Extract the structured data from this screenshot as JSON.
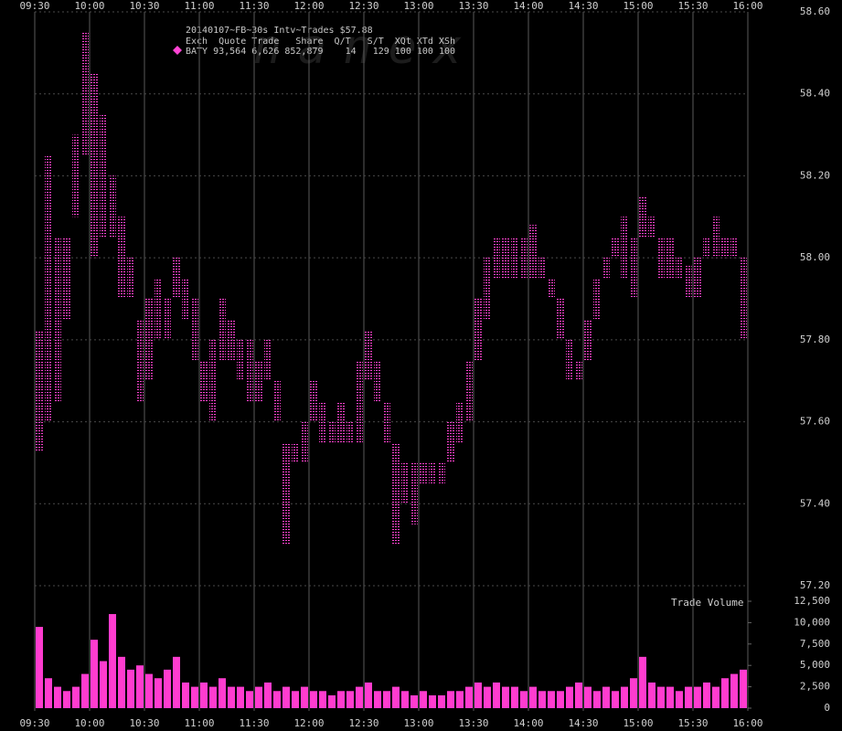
{
  "chart_data": {
    "type": "range",
    "header_lines": [
      "20140107~FB~30s Intv~Trades $57.88",
      "Exch  Quote Trade   Share  Q/T   S/T  XQt XTd XSh",
      "BATY 93,564 6,626 852,879    14   129 100 100 100"
    ],
    "watermark": "nanex",
    "volume_label": "Trade Volume",
    "xticks": [
      "09:30",
      "10:00",
      "10:30",
      "11:00",
      "11:30",
      "12:00",
      "12:30",
      "13:00",
      "13:30",
      "14:00",
      "14:30",
      "15:00",
      "15:30",
      "16:00"
    ],
    "ylim": [
      57.2,
      58.6
    ],
    "yticks": [
      {
        "value": 57.2,
        "label": "57.20"
      },
      {
        "value": 57.4,
        "label": "57.40"
      },
      {
        "value": 57.6,
        "label": "57.60"
      },
      {
        "value": 57.8,
        "label": "57.80"
      },
      {
        "value": 58.0,
        "label": "58.00"
      },
      {
        "value": 58.2,
        "label": "58.20"
      },
      {
        "value": 58.4,
        "label": "58.40"
      },
      {
        "value": 58.6,
        "label": "58.60"
      }
    ],
    "y2lim": [
      0,
      12500
    ],
    "y2ticks": [
      0,
      {
        "value": 2500,
        "label": "2,500"
      },
      {
        "value": 5000,
        "label": "5,000"
      },
      {
        "value": 7500,
        "label": "7,500"
      },
      {
        "value": 10000,
        "label": "10,000"
      },
      {
        "value": 12500,
        "label": "12,500"
      }
    ],
    "grid": true,
    "series": [
      {
        "color": "#ff44d4",
        "high": [
          57.82,
          58.25,
          58.05,
          58.05,
          58.3,
          58.55,
          58.45,
          58.35,
          58.2,
          58.1,
          58.0,
          57.85,
          57.9,
          57.95,
          57.9,
          58.0,
          57.95,
          57.9,
          57.75,
          57.8,
          57.9,
          57.85,
          57.8,
          57.8,
          57.75,
          57.8,
          57.7,
          57.55,
          57.55,
          57.6,
          57.7,
          57.65,
          57.6,
          57.65,
          57.6,
          57.75,
          57.82,
          57.75,
          57.65,
          57.55,
          57.5,
          57.5,
          57.5,
          57.5,
          57.5,
          57.6,
          57.65,
          57.75,
          57.9,
          58.0,
          58.05,
          58.05,
          58.05,
          58.05,
          58.08,
          58.0,
          57.95,
          57.9,
          57.8,
          57.75,
          57.85,
          57.95,
          58.0,
          58.05,
          58.1,
          58.05,
          58.15,
          58.1,
          58.05,
          58.05,
          58.0,
          57.98,
          58.0,
          58.05,
          58.1,
          58.05,
          58.05,
          58.0
        ],
        "low": [
          57.53,
          57.6,
          57.65,
          57.85,
          58.1,
          58.25,
          58.0,
          58.05,
          58.05,
          57.9,
          57.9,
          57.65,
          57.7,
          57.8,
          57.8,
          57.9,
          57.85,
          57.75,
          57.65,
          57.6,
          57.75,
          57.75,
          57.7,
          57.65,
          57.65,
          57.7,
          57.6,
          57.3,
          57.5,
          57.5,
          57.6,
          57.55,
          57.55,
          57.55,
          57.55,
          57.55,
          57.7,
          57.65,
          57.55,
          57.3,
          57.4,
          57.35,
          57.45,
          57.45,
          57.45,
          57.5,
          57.55,
          57.6,
          57.75,
          57.85,
          57.95,
          57.95,
          57.95,
          57.95,
          57.95,
          57.95,
          57.9,
          57.8,
          57.7,
          57.7,
          57.75,
          57.85,
          57.95,
          58.0,
          57.95,
          57.9,
          58.05,
          58.05,
          57.95,
          57.95,
          57.95,
          57.9,
          57.9,
          58.0,
          58.0,
          58.0,
          58.0,
          57.8
        ]
      },
      {
        "axis": "y2",
        "color": "#ff3ccf",
        "values": [
          9500,
          3500,
          2500,
          2000,
          2500,
          4000,
          8000,
          5500,
          11000,
          6000,
          4500,
          5000,
          4000,
          3500,
          4500,
          6000,
          3000,
          2500,
          3000,
          2500,
          3500,
          2500,
          2500,
          2000,
          2500,
          3000,
          2000,
          2500,
          2000,
          2500,
          2000,
          2000,
          1500,
          2000,
          2000,
          2500,
          3000,
          2000,
          2000,
          2500,
          2000,
          1500,
          2000,
          1500,
          1500,
          2000,
          2000,
          2500,
          3000,
          2500,
          3000,
          2500,
          2500,
          2000,
          2500,
          2000,
          2000,
          2000,
          2500,
          3000,
          2500,
          2000,
          2500,
          2000,
          2500,
          3500,
          6000,
          3000,
          2500,
          2500,
          2000,
          2500,
          2500,
          3000,
          2500,
          3500,
          4000,
          4500
        ]
      }
    ]
  }
}
